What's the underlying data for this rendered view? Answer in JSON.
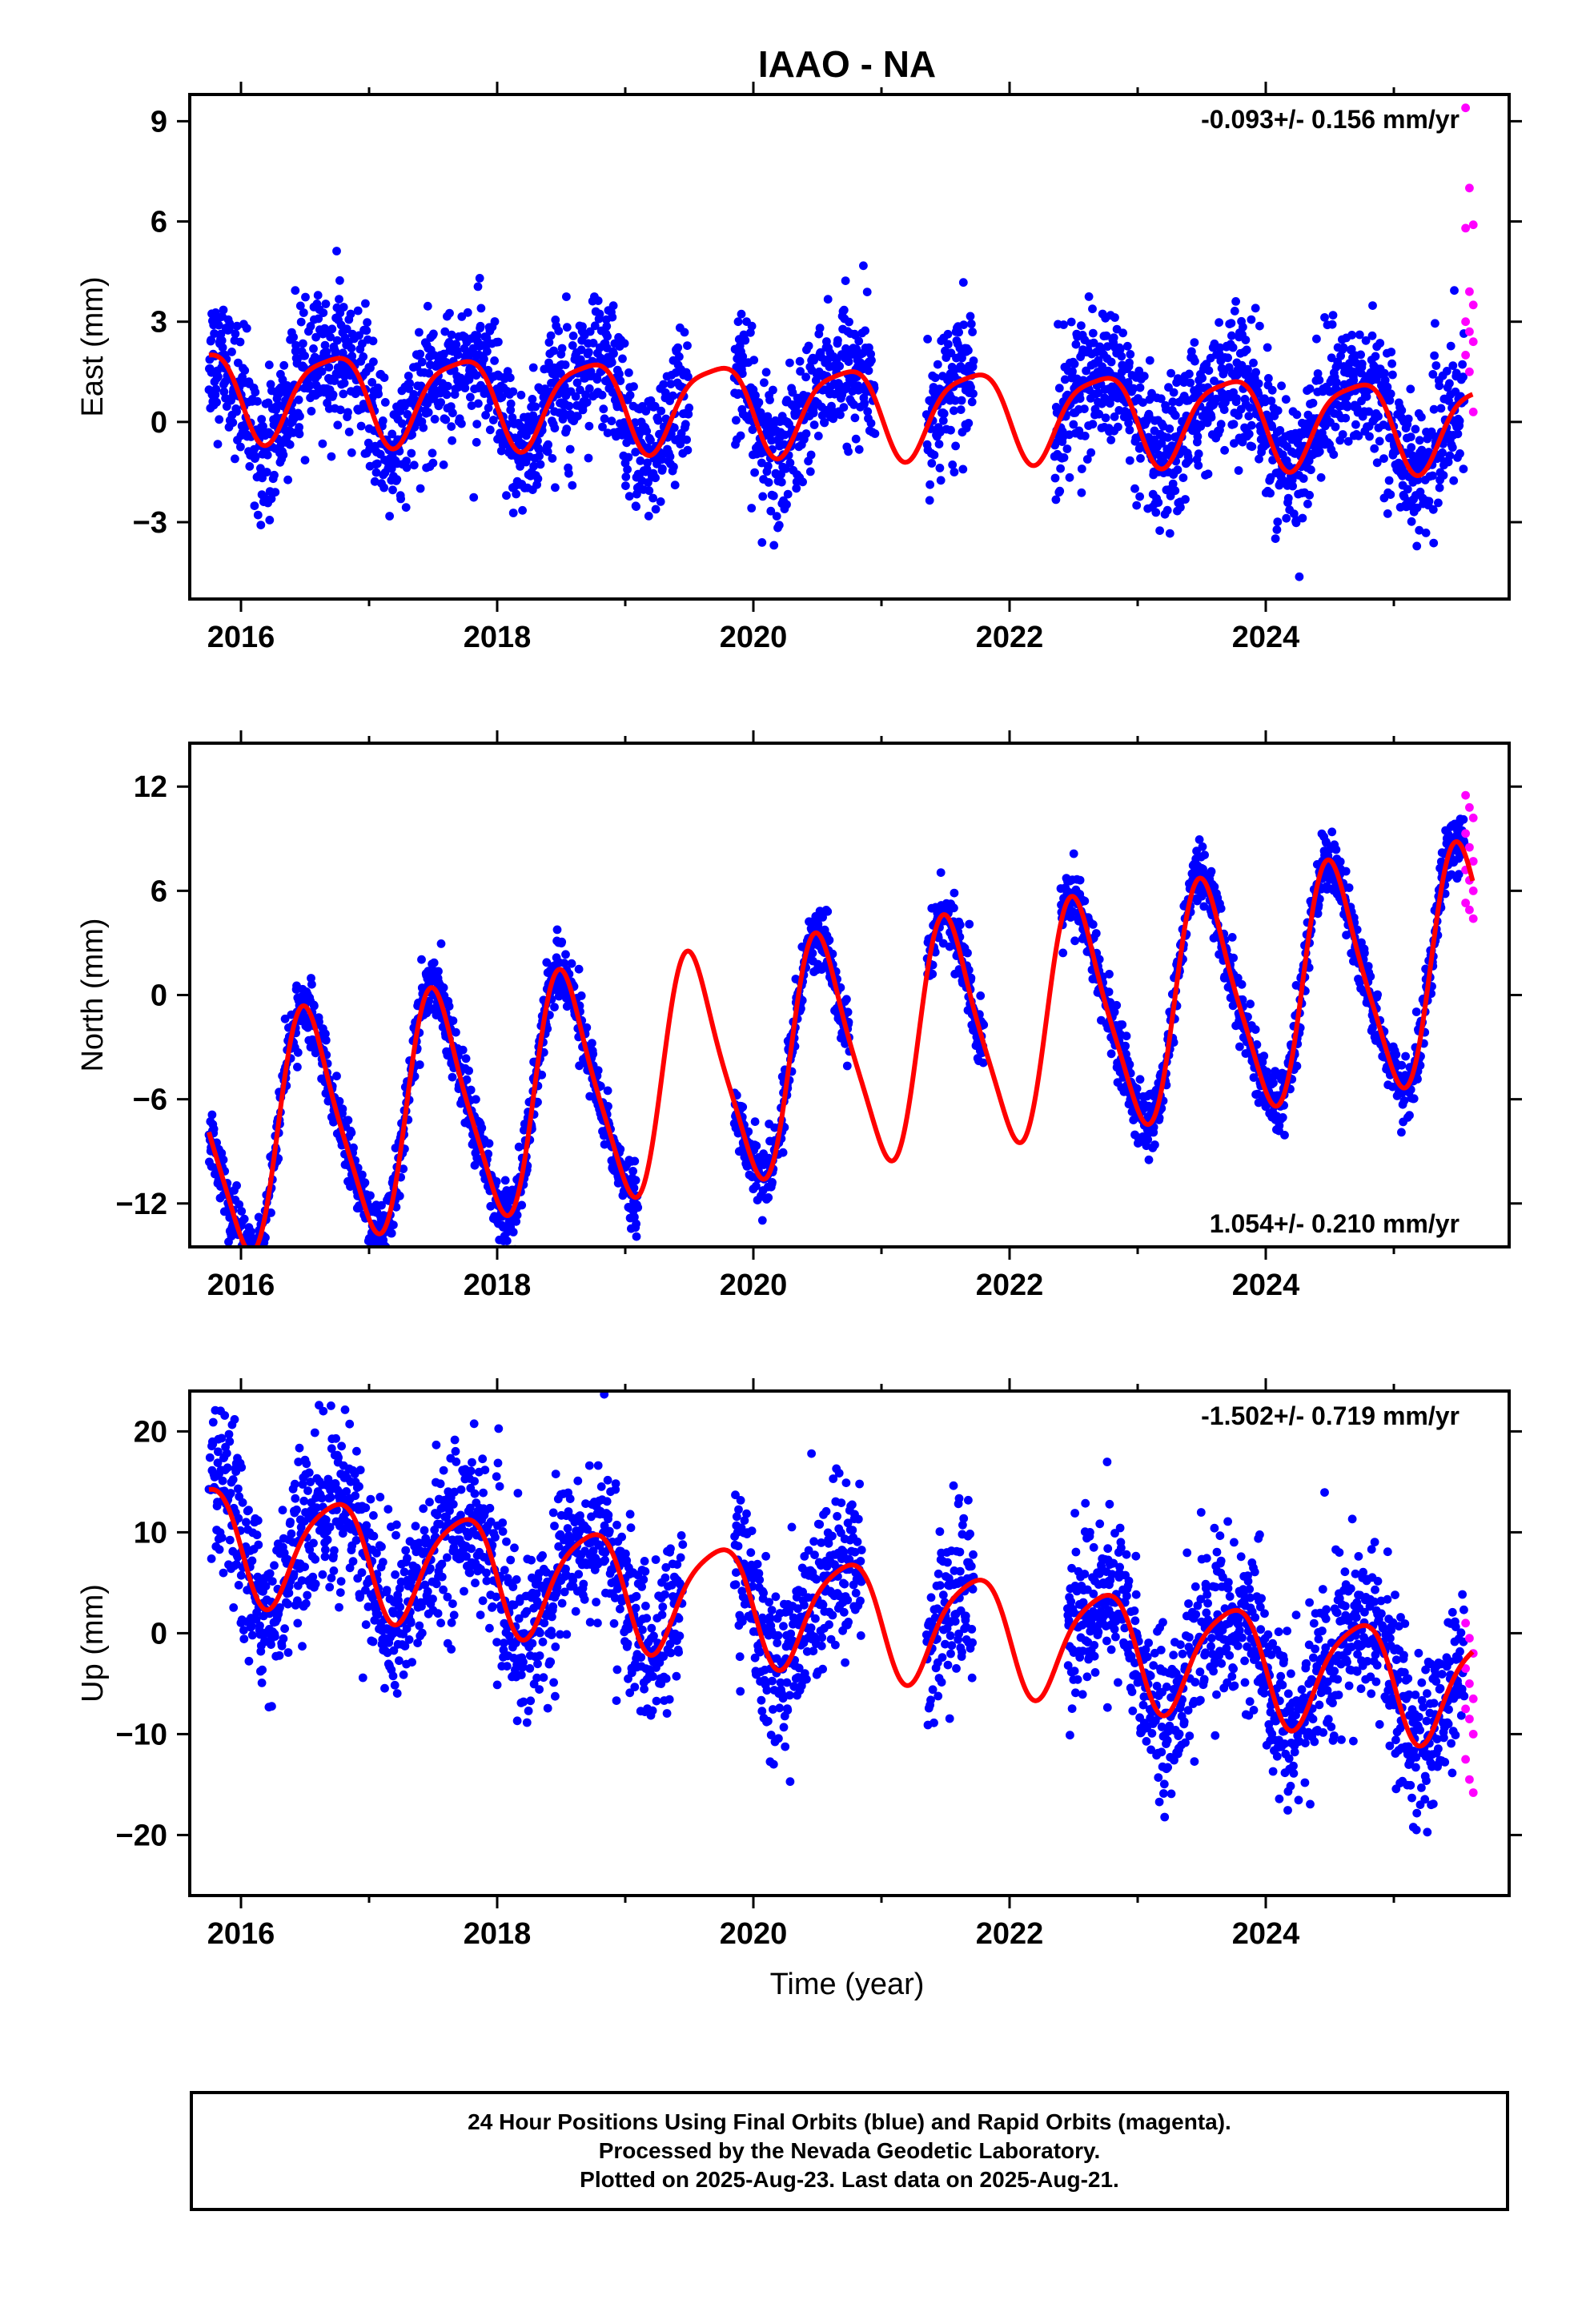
{
  "figure": {
    "title": "IAAO - NA",
    "xlabel": "Time (year)",
    "colors": {
      "final_orbits": "#0000ff",
      "rapid_orbits": "#ff00ff",
      "model": "#ff0000",
      "frame": "#000000"
    }
  },
  "chart_data": [
    {
      "type": "scatter",
      "panel": "east",
      "ylabel": "East (mm)",
      "rate_text": "-0.093+/- 0.156 mm/yr",
      "rate_position": "top-right",
      "xlim": [
        2015.6,
        2025.9
      ],
      "ylim": [
        -5.3,
        9.8
      ],
      "x_ticks": [
        2016,
        2018,
        2020,
        2022,
        2024
      ],
      "x_tick_labels": [
        "2016",
        "2018",
        "2020",
        "2022",
        "2024"
      ],
      "y_ticks": [
        -3,
        0,
        3,
        6,
        9
      ],
      "y_tick_labels": [
        "−3",
        "0",
        "3",
        "6",
        "9"
      ],
      "model": {
        "offset": 0.5,
        "trend": -0.1,
        "annual_amp": 1.3,
        "annual_peak": 0.7,
        "semiannual_amp": 0.3
      },
      "scatter": {
        "noise": 1.0
      },
      "data_gaps": [
        [
          2019.5,
          2019.85
        ],
        [
          2020.95,
          2021.35
        ],
        [
          2021.72,
          2022.35
        ]
      ],
      "series": [
        {
          "name": "Final Orbits",
          "color": "#0000ff",
          "x_range": [
            2015.75,
            2025.55
          ]
        },
        {
          "name": "Rapid Orbits",
          "color": "#ff00ff",
          "x_range": [
            2025.56,
            2025.62
          ],
          "y_values": [
            9.4,
            7.0,
            5.9,
            5.8,
            3.9,
            3.5,
            3.0,
            2.7,
            2.4,
            2.0,
            1.5,
            0.3
          ]
        }
      ]
    },
    {
      "type": "scatter",
      "panel": "north",
      "ylabel": "North (mm)",
      "rate_text": "1.054+/- 0.210 mm/yr",
      "rate_position": "bottom-right",
      "xlim": [
        2015.6,
        2025.9
      ],
      "ylim": [
        -14.5,
        14.5
      ],
      "x_ticks": [
        2016,
        2018,
        2020,
        2022,
        2024
      ],
      "x_tick_labels": [
        "2016",
        "2018",
        "2020",
        "2022",
        "2024"
      ],
      "y_ticks": [
        -12,
        -6,
        0,
        6,
        12
      ],
      "y_tick_labels": [
        "−12",
        "−6",
        "0",
        "6",
        "12"
      ],
      "model": {
        "offset": -4.0,
        "trend": 1.05,
        "annual_amp": 6.5,
        "annual_peak": 0.53,
        "semiannual_amp": 1.2
      },
      "scatter": {
        "noise": 0.9
      },
      "data_gaps": [
        [
          2019.1,
          2019.85
        ],
        [
          2020.75,
          2021.35
        ],
        [
          2021.8,
          2022.4
        ]
      ],
      "series": [
        {
          "name": "Final Orbits",
          "color": "#0000ff",
          "x_range": [
            2015.75,
            2025.55
          ]
        },
        {
          "name": "Rapid Orbits",
          "color": "#ff00ff",
          "x_range": [
            2025.56,
            2025.62
          ],
          "y_values": [
            11.5,
            10.8,
            10.2,
            9.3,
            8.5,
            7.7,
            7.2,
            6.6,
            6.0,
            5.3,
            4.9,
            4.4
          ]
        }
      ]
    },
    {
      "type": "scatter",
      "panel": "up",
      "ylabel": "Up (mm)",
      "rate_text": "-1.502+/- 0.719 mm/yr",
      "rate_position": "top-right",
      "xlim": [
        2015.6,
        2025.9
      ],
      "ylim": [
        -26,
        24
      ],
      "x_ticks": [
        2016,
        2018,
        2020,
        2022,
        2024
      ],
      "x_tick_labels": [
        "2016",
        "2018",
        "2020",
        "2022",
        "2024"
      ],
      "y_ticks": [
        -20,
        -10,
        0,
        10,
        20
      ],
      "y_tick_labels": [
        "−20",
        "−10",
        "0",
        "10",
        "20"
      ],
      "model": {
        "offset": 3.0,
        "trend": -1.5,
        "annual_amp": 5.5,
        "annual_peak": 0.72,
        "semiannual_amp": 1.0
      },
      "scatter": {
        "noise": 4.0
      },
      "data_gaps": [
        [
          2019.45,
          2019.85
        ],
        [
          2020.85,
          2021.35
        ],
        [
          2021.72,
          2022.45
        ]
      ],
      "series": [
        {
          "name": "Final Orbits",
          "color": "#0000ff",
          "x_range": [
            2015.75,
            2025.55
          ]
        },
        {
          "name": "Rapid Orbits",
          "color": "#ff00ff",
          "x_range": [
            2025.56,
            2025.62
          ],
          "y_values": [
            1.0,
            -0.5,
            -2.0,
            -3.5,
            -5.0,
            -6.5,
            -7.5,
            -8.5,
            -10.0,
            -12.5,
            -14.5,
            -15.8
          ]
        }
      ]
    }
  ],
  "caption": {
    "line1": "24 Hour Positions Using Final Orbits (blue) and Rapid Orbits (magenta).",
    "line2": "Processed by the Nevada Geodetic Laboratory.",
    "line3": "Plotted on 2025-Aug-23. Last data on 2025-Aug-21."
  }
}
